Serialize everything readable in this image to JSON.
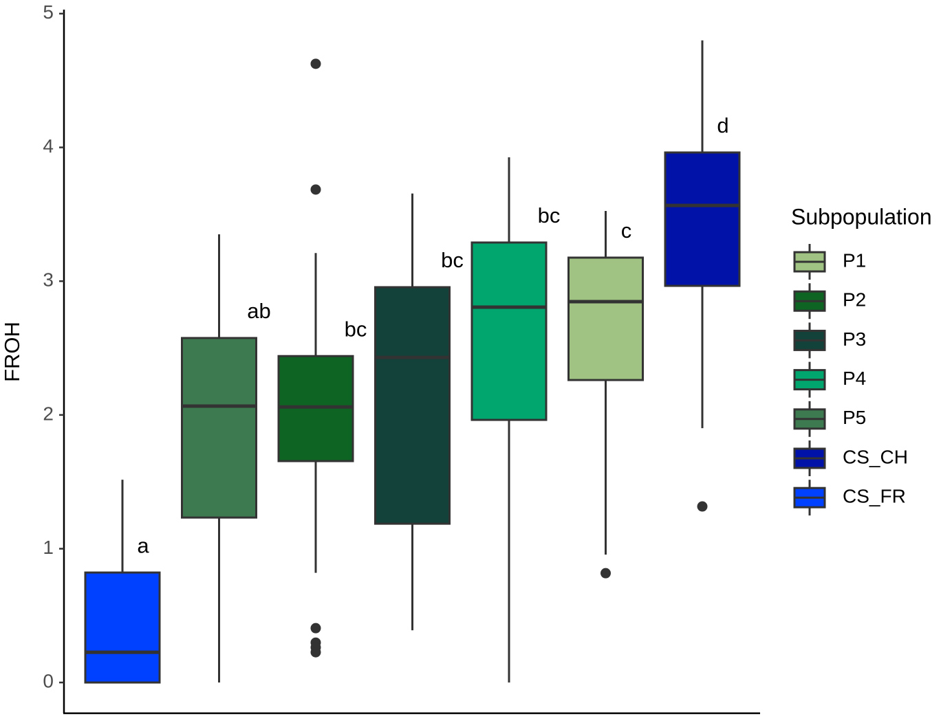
{
  "chart_data": {
    "type": "box",
    "y_label": "FROH",
    "ylim": [
      -0.23,
      5.03
    ],
    "yticks": [
      0,
      1,
      2,
      3,
      4,
      5
    ],
    "legend_title": "Subpopulation",
    "legend": [
      {
        "name": "P1",
        "color": "#a0c383"
      },
      {
        "name": "P2",
        "color": "#0e6423"
      },
      {
        "name": "P3",
        "color": "#12423a"
      },
      {
        "name": "P4",
        "color": "#00a66e"
      },
      {
        "name": "P5",
        "color": "#3d7a50"
      },
      {
        "name": "CS_CH",
        "color": "#0012a8"
      },
      {
        "name": "CS_FR",
        "color": "#0040ff"
      }
    ],
    "boxes": [
      {
        "color": "#0040ff",
        "min": 0,
        "q1": 0,
        "median": 0.226,
        "q3": 0.822,
        "max": 1.516,
        "outliers": [],
        "label": "a"
      },
      {
        "color": "#3d7a50",
        "min": 0,
        "q1": 1.233,
        "median": 2.066,
        "q3": 2.575,
        "max": 3.35,
        "outliers": [],
        "label": "ab"
      },
      {
        "color": "#0e6423",
        "min": 0.82,
        "q1": 1.655,
        "median": 2.06,
        "q3": 2.44,
        "max": 3.21,
        "outliers": [
          4.625,
          3.685,
          0.406,
          0.298,
          0.262,
          0.226
        ],
        "label": "bc"
      },
      {
        "color": "#12423a",
        "min": 0.39,
        "q1": 1.187,
        "median": 2.43,
        "q3": 2.955,
        "max": 3.655,
        "outliers": [],
        "label": "bc"
      },
      {
        "color": "#00a66e",
        "min": 0,
        "q1": 1.963,
        "median": 2.806,
        "q3": 3.289,
        "max": 3.926,
        "outliers": [],
        "label": "bc"
      },
      {
        "color": "#a0c383",
        "min": 0.956,
        "q1": 2.261,
        "median": 2.847,
        "q3": 3.176,
        "max": 3.525,
        "outliers": [
          0.817
        ],
        "label": "c"
      },
      {
        "color": "#0012a8",
        "min": 1.901,
        "q1": 2.965,
        "median": 3.566,
        "q3": 3.962,
        "max": 4.8,
        "outliers": [
          1.316
        ],
        "label": "d"
      }
    ]
  }
}
